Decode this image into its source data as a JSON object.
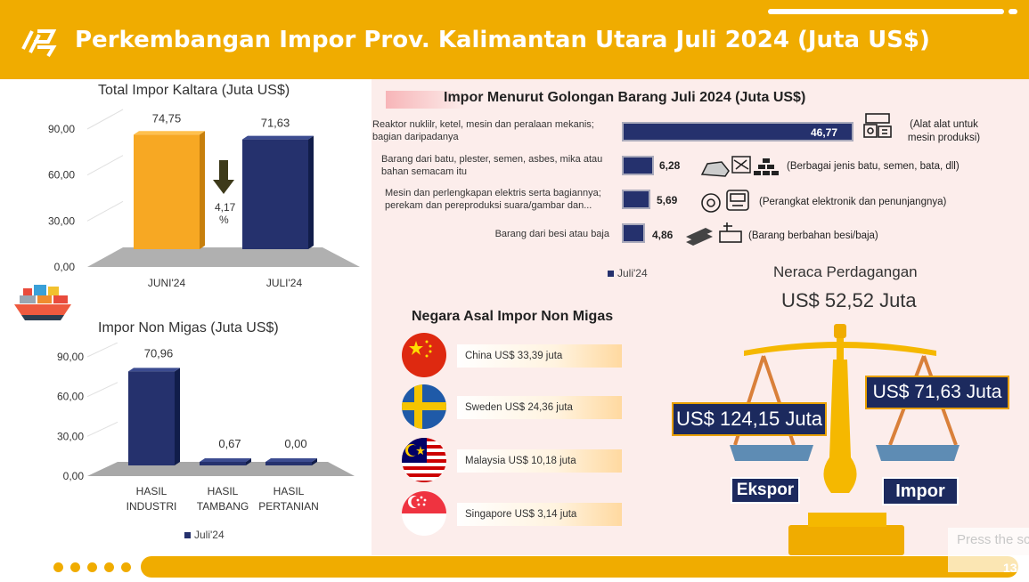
{
  "header": {
    "title": "Perkembangan Impor Prov. Kalimantan Utara Juli 2024 (Juta US$)"
  },
  "total_impor": {
    "title": "Total Impor Kaltara (Juta US$)",
    "change_label": "4,17",
    "change_unit": "%"
  },
  "non_migas": {
    "title": "Impor Non Migas (Juta US$)",
    "legend": "Juli'24"
  },
  "golongan": {
    "title": "Impor Menurut Golongan Barang Juli 2024 (Juta US$)",
    "legend": "Juli'24",
    "items": [
      {
        "label": "Reaktor nuklilr, ketel, mesin dan peralaan mekanis; bagian daripadanya",
        "value": "46,77",
        "note": "(Alat alat untuk mesin produksi)",
        "icon": "machine-icon"
      },
      {
        "label": "Barang dari batu, plester, semen, asbes, mika atau bahan semacam itu",
        "value": "6,28",
        "note": "(Berbagai jenis batu, semen, bata, dll)",
        "icon": "stone-icon"
      },
      {
        "label": "Mesin dan perlengkapan elektris serta bagiannya; perekam dan pereproduksi suara/gambar dan...",
        "value": "5,69",
        "note": "(Perangkat elektronik dan penunjangnya)",
        "icon": "electronics-icon"
      },
      {
        "label": "Barang dari besi atau baja",
        "value": "4,86",
        "note": "(Barang berbahan besi/baja)",
        "icon": "steel-icon"
      }
    ]
  },
  "negara": {
    "title": "Negara Asal Impor Non Migas",
    "items": [
      {
        "label": "China US$ 33,39 juta",
        "flag": "china-flag-icon"
      },
      {
        "label": "Sweden US$ 24,36 juta",
        "flag": "sweden-flag-icon"
      },
      {
        "label": "Malaysia US$ 10,18 juta",
        "flag": "malaysia-flag-icon"
      },
      {
        "label": "Singapore US$ 3,14 juta",
        "flag": "singapore-flag-icon"
      }
    ]
  },
  "neraca": {
    "title": "Neraca Perdagangan",
    "value": "US$ 52,52 Juta",
    "ekspor_value": "US$ 124,15 Juta",
    "impor_value": "US$ 71,63 Juta",
    "ekspor_label": "Ekspor",
    "impor_label": "Impor"
  },
  "footer": {
    "page_number": "13",
    "watermark": "Press the screen b"
  },
  "colors": {
    "accent": "#f0ac00",
    "navy": "#25316d",
    "orange_bar": "#f7a823"
  },
  "chart_data": [
    {
      "type": "bar",
      "title": "Total Impor Kaltara (Juta US$)",
      "categories": [
        "JUNI'24",
        "JULI'24"
      ],
      "values": [
        74.75,
        71.63
      ],
      "value_labels": [
        "74,75",
        "71,63"
      ],
      "ylim": [
        0,
        90
      ],
      "yticks": [
        "0,00",
        "30,00",
        "60,00",
        "90,00"
      ],
      "colors": [
        "#f7a823",
        "#25316d"
      ]
    },
    {
      "type": "bar",
      "title": "Impor Non Migas (Juta US$)",
      "categories": [
        "HASIL INDUSTRI",
        "HASIL TAMBANG",
        "HASIL PERTANIAN"
      ],
      "category_lines": [
        [
          "HASIL",
          "INDUSTRI"
        ],
        [
          "HASIL",
          "TAMBANG"
        ],
        [
          "HASIL",
          "PERTANIAN"
        ]
      ],
      "series": [
        {
          "name": "Juli'24",
          "values": [
            70.96,
            0.67,
            0.0
          ]
        }
      ],
      "value_labels": [
        "70,96",
        "0,67",
        "0,00"
      ],
      "ylim": [
        0,
        90
      ],
      "yticks": [
        "0,00",
        "30,00",
        "60,00",
        "90,00"
      ]
    },
    {
      "type": "bar",
      "orientation": "horizontal",
      "title": "Impor Menurut Golongan Barang Juli 2024 (Juta US$)",
      "series": [
        {
          "name": "Juli'24",
          "values": [
            46.77,
            6.28,
            5.69,
            4.86
          ]
        }
      ]
    }
  ]
}
